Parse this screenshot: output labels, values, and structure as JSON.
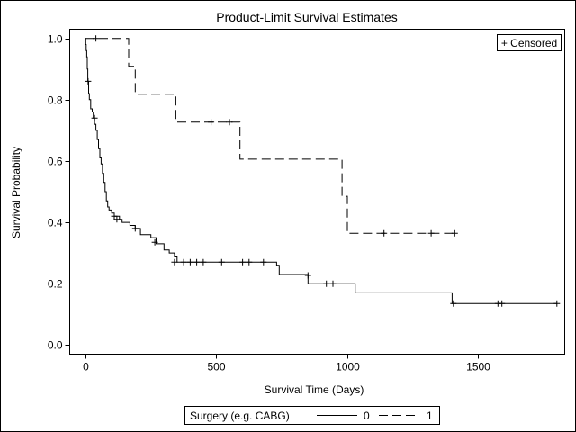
{
  "chart_data": {
    "type": "line",
    "title": "Product-Limit Survival Estimates",
    "xlabel": "Survival Time (Days)",
    "ylabel": "Survival Probability",
    "xlim": [
      -60,
      1830
    ],
    "ylim": [
      -0.03,
      1.03
    ],
    "xticks": [
      0,
      500,
      1000,
      1500
    ],
    "yticks": [
      0.0,
      0.2,
      0.4,
      0.6,
      0.8,
      1.0
    ],
    "xtick_labels": [
      "0",
      "500",
      "1000",
      "1500"
    ],
    "ytick_labels": [
      "0.0",
      "0.2",
      "0.4",
      "0.6",
      "0.8",
      "1.0"
    ],
    "grid": false,
    "legend": {
      "title": "Surgery (e.g. CABG)",
      "placement": "bottom",
      "censored_label": "+ Censored",
      "censored_placement": "top-right"
    },
    "series": [
      {
        "name": "0",
        "style": "solid",
        "color": "#000000",
        "step_points": [
          [
            0,
            1.0
          ],
          [
            1,
            0.98
          ],
          [
            3,
            0.96
          ],
          [
            5,
            0.94
          ],
          [
            7,
            0.9
          ],
          [
            9,
            0.86
          ],
          [
            12,
            0.82
          ],
          [
            15,
            0.8
          ],
          [
            20,
            0.77
          ],
          [
            26,
            0.76
          ],
          [
            30,
            0.74
          ],
          [
            35,
            0.72
          ],
          [
            40,
            0.7
          ],
          [
            45,
            0.67
          ],
          [
            50,
            0.64
          ],
          [
            55,
            0.61
          ],
          [
            60,
            0.59
          ],
          [
            65,
            0.56
          ],
          [
            70,
            0.53
          ],
          [
            75,
            0.5
          ],
          [
            80,
            0.47
          ],
          [
            85,
            0.45
          ],
          [
            90,
            0.44
          ],
          [
            100,
            0.43
          ],
          [
            110,
            0.42
          ],
          [
            130,
            0.41
          ],
          [
            140,
            0.4
          ],
          [
            170,
            0.39
          ],
          [
            190,
            0.38
          ],
          [
            210,
            0.36
          ],
          [
            250,
            0.35
          ],
          [
            270,
            0.33
          ],
          [
            300,
            0.31
          ],
          [
            320,
            0.3
          ],
          [
            340,
            0.29
          ],
          [
            350,
            0.27
          ],
          [
            730,
            0.26
          ],
          [
            740,
            0.23
          ],
          [
            850,
            0.2
          ],
          [
            1030,
            0.17
          ],
          [
            1400,
            0.135
          ],
          [
            1800,
            0.135
          ]
        ],
        "censored": [
          [
            10,
            0.86
          ],
          [
            35,
            0.74
          ],
          [
            110,
            0.42
          ],
          [
            120,
            0.41
          ],
          [
            190,
            0.38
          ],
          [
            265,
            0.335
          ],
          [
            340,
            0.27
          ],
          [
            375,
            0.27
          ],
          [
            400,
            0.27
          ],
          [
            425,
            0.27
          ],
          [
            450,
            0.27
          ],
          [
            520,
            0.27
          ],
          [
            600,
            0.27
          ],
          [
            625,
            0.27
          ],
          [
            680,
            0.27
          ],
          [
            850,
            0.227
          ],
          [
            920,
            0.2
          ],
          [
            945,
            0.2
          ],
          [
            1405,
            0.135
          ],
          [
            1575,
            0.135
          ],
          [
            1590,
            0.135
          ],
          [
            1800,
            0.135
          ]
        ]
      },
      {
        "name": "1",
        "style": "dashed",
        "color": "#000000",
        "step_points": [
          [
            0,
            1.0
          ],
          [
            165,
            1.0
          ],
          [
            165,
            0.909
          ],
          [
            190,
            0.818
          ],
          [
            345,
            0.727
          ],
          [
            590,
            0.606
          ],
          [
            980,
            0.485
          ],
          [
            1000,
            0.364
          ],
          [
            1410,
            0.364
          ]
        ],
        "censored": [
          [
            40,
            1.0
          ],
          [
            480,
            0.727
          ],
          [
            550,
            0.727
          ],
          [
            1140,
            0.364
          ],
          [
            1320,
            0.364
          ],
          [
            1410,
            0.364
          ]
        ]
      }
    ]
  }
}
